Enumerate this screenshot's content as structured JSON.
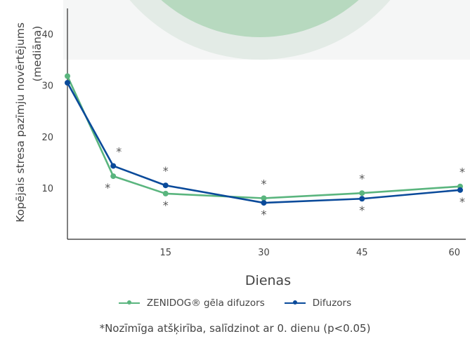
{
  "chart_data": {
    "type": "line",
    "ylabel": "Kopējais stresa pazīmju novērtējums\n(mediāna)",
    "xlabel": "Dienas",
    "x": [
      0,
      7,
      15,
      30,
      45,
      60
    ],
    "xticks": [
      15,
      30,
      45,
      60
    ],
    "yticks": [
      10,
      20,
      30,
      40
    ],
    "xlim": [
      0,
      60
    ],
    "ylim": [
      0,
      45
    ],
    "grid": false,
    "legend_position": "bottom",
    "series": [
      {
        "name": "ZENIDOG® gēla difuzors",
        "color": "#5ab57e",
        "values": [
          31.8,
          12.3,
          8.9,
          8.0,
          9.0,
          10.3
        ],
        "significance_markers": [
          "",
          "below",
          "below",
          "above",
          "above",
          "above"
        ]
      },
      {
        "name": "Difuzors",
        "color": "#0a4a9a",
        "values": [
          30.5,
          14.3,
          10.5,
          7.1,
          7.9,
          9.6
        ],
        "significance_markers": [
          "",
          "above",
          "above",
          "below",
          "below",
          "below"
        ]
      }
    ],
    "footnote": "*Nozīmīga atšķirība, salīdzinot ar 0. dienu (p<0.05)"
  }
}
